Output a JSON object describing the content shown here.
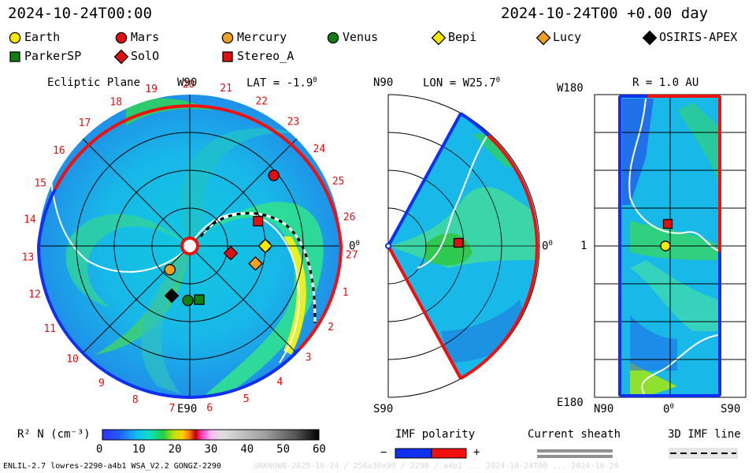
{
  "header": {
    "timestamp_left": "2024-10-24T00:00",
    "timestamp_right": "2024-10-24T00 +0.00 day"
  },
  "legend": [
    {
      "name": "Earth",
      "marker": "circle",
      "color": "#f5e800"
    },
    {
      "name": "Mars",
      "marker": "circle",
      "color": "#e01010"
    },
    {
      "name": "Mercury",
      "marker": "circle",
      "color": "#f0a020"
    },
    {
      "name": "Venus",
      "marker": "circle",
      "color": "#108010"
    },
    {
      "name": "Bepi",
      "marker": "diamond",
      "color": "#f5e800"
    },
    {
      "name": "Lucy",
      "marker": "diamond",
      "color": "#f0a020"
    },
    {
      "name": "OSIRIS-APEX",
      "marker": "diamond",
      "color": "#000000"
    },
    {
      "name": "ParkerSP",
      "marker": "square",
      "color": "#108010"
    },
    {
      "name": "SolO",
      "marker": "diamond",
      "color": "#e01010"
    },
    {
      "name": "Stereo_A",
      "marker": "square",
      "color": "#e01010"
    }
  ],
  "panels": {
    "ecliptic": {
      "title": "Ecliptic Plane",
      "top": "W90",
      "bottom": "E90",
      "right": "0",
      "lat": "LAT = -1.9"
    },
    "meridional": {
      "top": "N90",
      "bottom": "S90",
      "right": "0",
      "lon": "LON = W25.7"
    },
    "radial": {
      "top_left": "W180",
      "bottom_left": "E180",
      "mid_left": "1",
      "r": "R = 1.0 AU",
      "x_left": "N90",
      "x_mid": "0",
      "x_right": "S90"
    }
  },
  "chart_data": {
    "type": "heatmap",
    "colorbar": {
      "label": "R² N (cm⁻³)",
      "ticks": [
        "0",
        "10",
        "20",
        "30",
        "40",
        "50",
        "60"
      ],
      "range": [
        0,
        60
      ]
    },
    "carrington_ticks": [
      "1",
      "2",
      "3",
      "4",
      "5",
      "6",
      "7",
      "8",
      "9",
      "10",
      "11",
      "12",
      "13",
      "14",
      "15",
      "16",
      "17",
      "18",
      "19",
      "20",
      "21",
      "22",
      "23",
      "24",
      "25",
      "26",
      "27"
    ],
    "bodies_ecliptic": [
      {
        "name": "Earth",
        "r_au": 1.0,
        "lon_deg": 0
      },
      {
        "name": "Mars",
        "r_au": 1.45,
        "lon_deg": 40
      },
      {
        "name": "Mercury",
        "r_au": 0.41,
        "lon_deg": -130
      },
      {
        "name": "Venus",
        "r_au": 0.72,
        "lon_deg": -92
      },
      {
        "name": "Bepi",
        "r_au": 1.0,
        "lon_deg": 0
      },
      {
        "name": "Lucy",
        "r_au": 0.9,
        "lon_deg": -15
      },
      {
        "name": "OSIRIS-APEX",
        "r_au": 0.7,
        "lon_deg": -110
      },
      {
        "name": "ParkerSP",
        "r_au": 0.72,
        "lon_deg": -80
      },
      {
        "name": "SolO",
        "r_au": 0.55,
        "lon_deg": -10
      },
      {
        "name": "Stereo_A",
        "r_au": 0.96,
        "lon_deg": 20
      }
    ]
  },
  "bottom": {
    "imf_title": "IMF polarity",
    "imf_minus": "−",
    "imf_plus": "+",
    "sheath_title": "Current sheath",
    "imf3d_title": "3D IMF line",
    "footer_left": "ENLIL-2.7 lowres-2290-a4b1 WSA_V2.2 GONGZ-2290",
    "footer_right": "UNKNOWN-2025-10-24 / 256x30x90 / 2290 / a4b1 ... 2024-10-24T00 ... 2024-10-29"
  },
  "colors": {
    "imf_negative": "#1030f0",
    "imf_positive": "#f01010",
    "sheath": "#909090"
  }
}
